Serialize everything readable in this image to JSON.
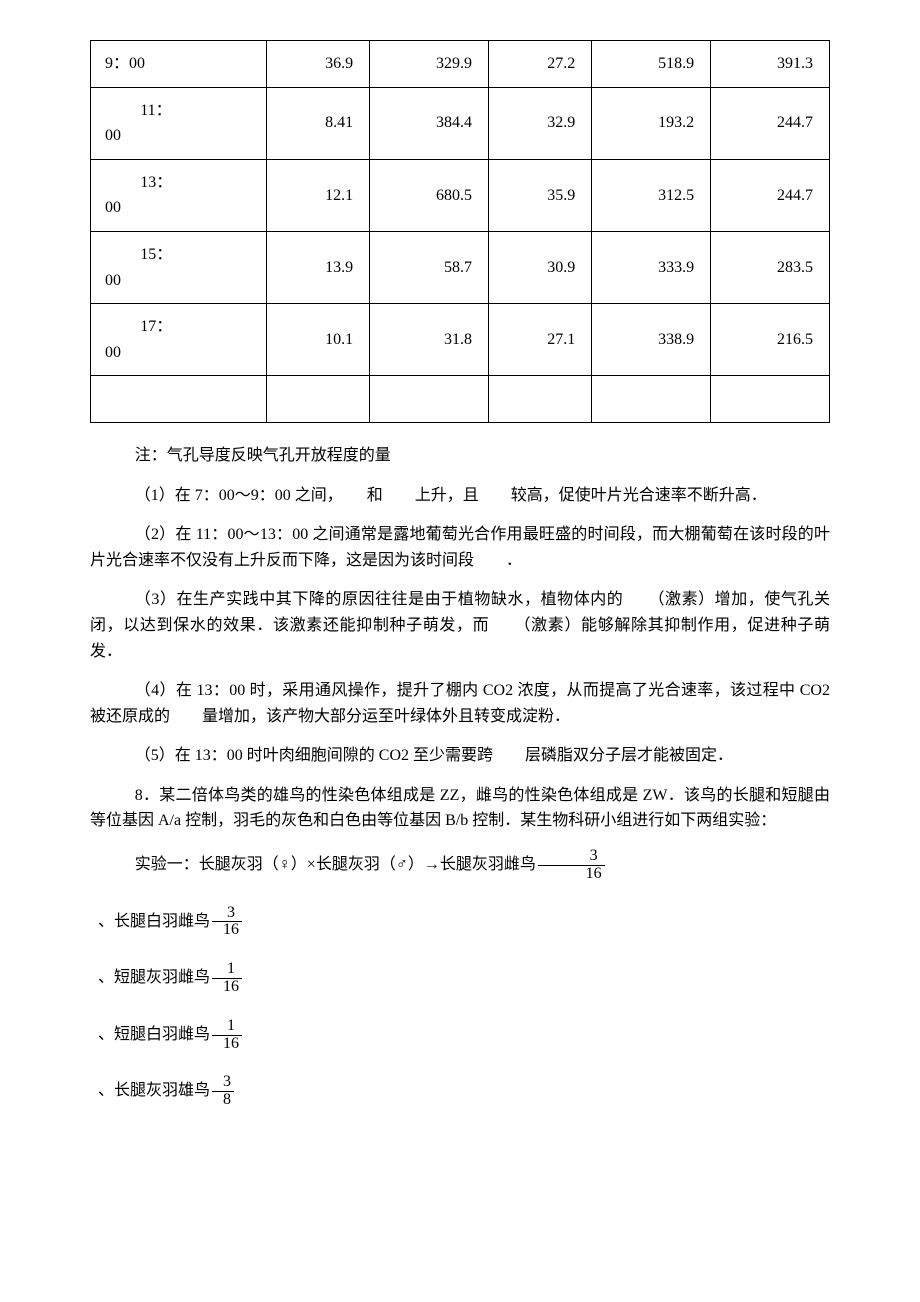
{
  "table": {
    "columns_count": 6,
    "rows": [
      {
        "time": "9：00",
        "c1": "36.9",
        "c2": "329.9",
        "c3": "27.2",
        "c4": "518.9",
        "c5": "391.3"
      },
      {
        "time": "11：00",
        "c1": "8.41",
        "c2": "384.4",
        "c3": "32.9",
        "c4": "193.2",
        "c5": "244.7"
      },
      {
        "time": "13：00",
        "c1": "12.1",
        "c2": "680.5",
        "c3": "35.9",
        "c4": "312.5",
        "c5": "244.7"
      },
      {
        "time": "15：00",
        "c1": "13.9",
        "c2": "58.7",
        "c3": "30.9",
        "c4": "333.9",
        "c5": "283.5"
      },
      {
        "time": "17：00",
        "c1": "10.1",
        "c2": "31.8",
        "c3": "27.1",
        "c4": "338.9",
        "c5": "216.5"
      }
    ]
  },
  "note": "注：气孔导度反映气孔开放程度的量",
  "q1": "（1）在 7：00～9：00 之间，　　和　　上升，且　　较高，促使叶片光合速率不断升高．",
  "q2": "（2）在 11：00～13：00 之间通常是露地葡萄光合作用最旺盛的时间段，而大棚葡萄在该时段的叶片光合速率不仅没有上升反而下降，这是因为该时间段　　．",
  "q3": "（3）在生产实践中其下降的原因往往是由于植物缺水，植物体内的　　（激素）增加，使气孔关闭，以达到保水的效果．该激素还能抑制种子萌发，而　　（激素）能够解除其抑制作用，促进种子萌发．",
  "q4": "（4）在 13：00 时，采用通风操作，提升了棚内 CO2 浓度，从而提高了光合速率，该过程中 CO2 被还原成的　　量增加，该产物大部分运至叶绿体外且转变成淀粉．",
  "q5": "（5）在 13：00 时叶肉细胞间隙的 CO2 至少需要跨　　层磷脂双分子层才能被固定．",
  "q8_intro": "8．某二倍体鸟类的雄鸟的性染色体组成是 ZZ，雌鸟的性染色体组成是 ZW．该鸟的长腿和短腿由等位基因 A/a 控制，羽毛的灰色和白色由等位基因 B/b 控制．某生物科研小组进行如下两组实验：",
  "exp1": {
    "prefix": "实验一：长腿灰羽（♀）×长腿灰羽（♂）→长腿灰羽雌鸟",
    "items": [
      {
        "label": "长腿白羽雌鸟",
        "num": "3",
        "den": "16"
      },
      {
        "label": "短腿灰羽雌鸟",
        "num": "1",
        "den": "16"
      },
      {
        "label": "短腿白羽雌鸟",
        "num": "1",
        "den": "16"
      },
      {
        "label": "长腿灰羽雄鸟",
        "num": "3",
        "den": "8"
      }
    ],
    "first_frac": {
      "num": "3",
      "den": "16"
    }
  }
}
